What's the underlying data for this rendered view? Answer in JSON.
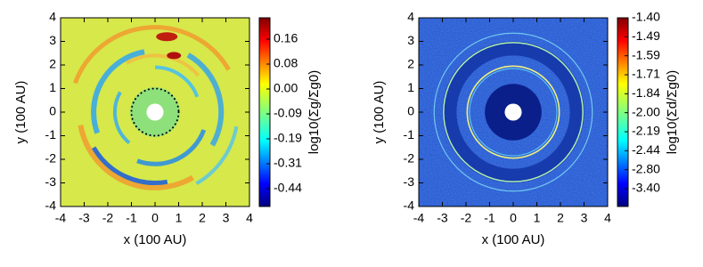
{
  "chart_data": [
    {
      "type": "heatmap",
      "xlabel": "x (100 AU)",
      "ylabel": "y (100 AU)",
      "xlim": [
        -4,
        4
      ],
      "ylim": [
        -4,
        4
      ],
      "xticks": [
        -4,
        -3,
        -2,
        -1,
        0,
        1,
        2,
        3,
        4
      ],
      "yticks": [
        -4,
        -3,
        -2,
        -1,
        0,
        1,
        2,
        3,
        4
      ],
      "colorbar": {
        "label": "log10(Σg/Σg0)",
        "ticks": [
          "0.16",
          "0.08",
          "0.00",
          "-0.09",
          "-0.19",
          "-0.31",
          "-0.44"
        ]
      }
    },
    {
      "type": "heatmap",
      "xlabel": "x (100 AU)",
      "ylabel": "y (100 AU)",
      "xlim": [
        -4,
        4
      ],
      "ylim": [
        -4,
        4
      ],
      "xticks": [
        -4,
        -3,
        -2,
        -1,
        0,
        1,
        2,
        3,
        4
      ],
      "yticks": [
        -4,
        -3,
        -2,
        -1,
        0,
        1,
        2,
        3,
        4
      ],
      "colorbar": {
        "label": "log10(Σd/Σg0)",
        "ticks": [
          "-1.40",
          "-1.49",
          "-1.59",
          "-1.71",
          "-1.84",
          "-2.00",
          "-2.19",
          "-2.44",
          "-2.80",
          "-3.40"
        ]
      }
    }
  ]
}
